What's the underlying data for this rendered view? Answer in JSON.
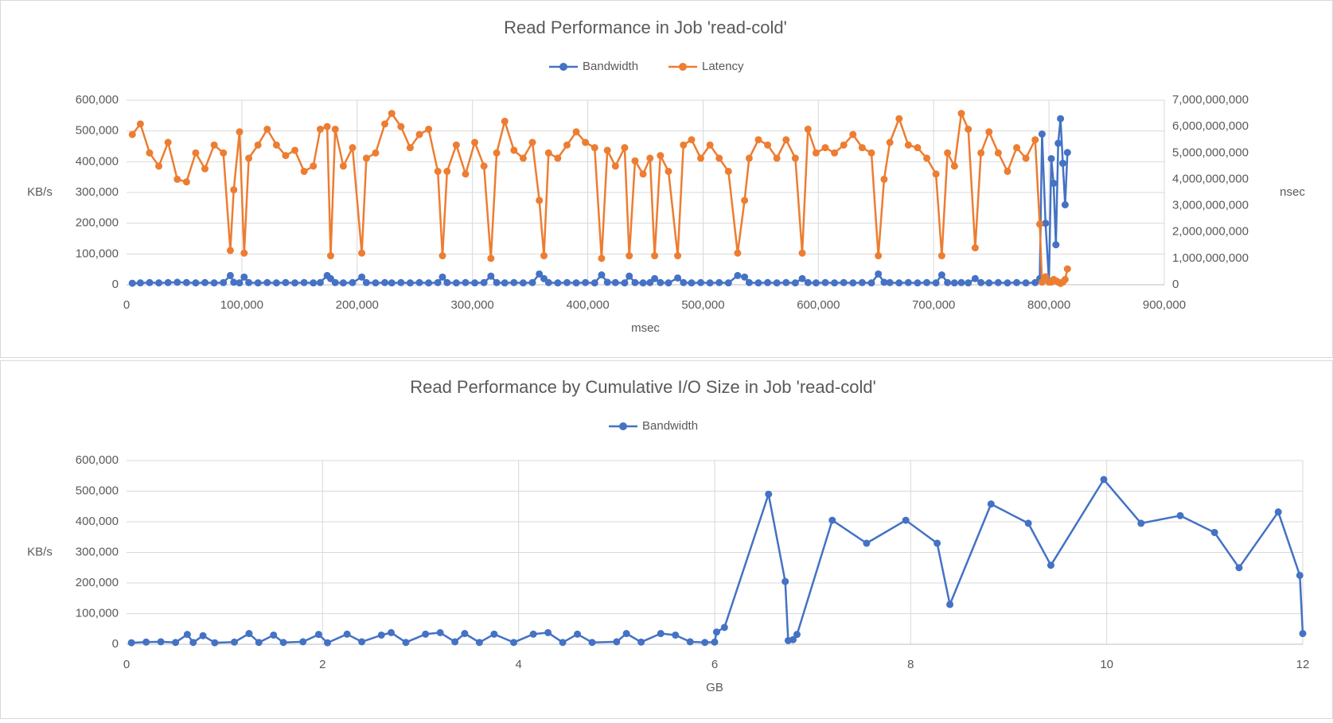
{
  "chart_data": [
    {
      "type": "line",
      "title": "Read Performance in Job 'read-cold'",
      "x_label": "msec",
      "y_label": "KB/s",
      "y2_label": "nsec",
      "grid": true,
      "legend": "top",
      "xlim": [
        0,
        900000
      ],
      "xticks": [
        0,
        {
          "value": 100000,
          "label": "100,000"
        },
        {
          "value": 200000,
          "label": "200,000"
        },
        {
          "value": 300000,
          "label": "300,000"
        },
        {
          "value": 400000,
          "label": "400,000"
        },
        {
          "value": 500000,
          "label": "500,000"
        },
        {
          "value": 600000,
          "label": "600,000"
        },
        {
          "value": 700000,
          "label": "700,000"
        },
        {
          "value": 800000,
          "label": "800,000"
        },
        {
          "value": 900000,
          "label": "900,000"
        }
      ],
      "ylim": [
        0,
        600000
      ],
      "yticks": [
        0,
        {
          "value": 100000,
          "label": "100,000"
        },
        {
          "value": 200000,
          "label": "200,000"
        },
        {
          "value": 300000,
          "label": "300,000"
        },
        {
          "value": 400000,
          "label": "400,000"
        },
        {
          "value": 500000,
          "label": "500,000"
        },
        {
          "value": 600000,
          "label": "600,000"
        }
      ],
      "y2lim": [
        0,
        7000000000
      ],
      "y2ticks": [
        0,
        {
          "value": 1000000000,
          "label": "1,000,000,000"
        },
        {
          "value": 2000000000,
          "label": "2,000,000,000"
        },
        {
          "value": 3000000000,
          "label": "3,000,000,000"
        },
        {
          "value": 4000000000,
          "label": "4,000,000,000"
        },
        {
          "value": 5000000000,
          "label": "5,000,000,000"
        },
        {
          "value": 6000000000,
          "label": "6,000,000,000"
        },
        {
          "value": 7000000000,
          "label": "7,000,000,000"
        }
      ],
      "x": [
        5000,
        12000,
        20000,
        28000,
        36000,
        44000,
        52000,
        60000,
        68000,
        76000,
        84000,
        90000,
        93000,
        98000,
        102000,
        106000,
        114000,
        122000,
        130000,
        138000,
        146000,
        154000,
        162000,
        168000,
        174000,
        177000,
        181000,
        188000,
        196000,
        204000,
        208000,
        216000,
        224000,
        230000,
        238000,
        246000,
        254000,
        262000,
        270000,
        274000,
        278000,
        286000,
        294000,
        302000,
        310000,
        316000,
        321000,
        328000,
        336000,
        344000,
        352000,
        358000,
        362000,
        366000,
        374000,
        382000,
        390000,
        398000,
        406000,
        412000,
        417000,
        424000,
        432000,
        436000,
        441000,
        448000,
        454000,
        458000,
        463000,
        470000,
        478000,
        483000,
        490000,
        498000,
        506000,
        514000,
        522000,
        530000,
        536000,
        540000,
        548000,
        556000,
        564000,
        572000,
        580000,
        586000,
        591000,
        598000,
        606000,
        614000,
        622000,
        630000,
        638000,
        646000,
        652000,
        657000,
        662000,
        670000,
        678000,
        686000,
        694000,
        702000,
        707000,
        712000,
        718000,
        724000,
        730000,
        736000,
        741000,
        748000,
        756000,
        764000,
        772000,
        780000,
        788000,
        792000,
        794000,
        797000,
        800000,
        802000,
        804000,
        806000,
        808000,
        810000,
        812000,
        814000,
        816000
      ],
      "series": [
        {
          "name": "Bandwidth",
          "color": "#4472c4",
          "values": [
            5000,
            6000,
            7000,
            6000,
            7000,
            8000,
            7000,
            6000,
            7000,
            6000,
            7000,
            30000,
            8000,
            6000,
            25000,
            7000,
            6000,
            7000,
            6000,
            7000,
            6000,
            7000,
            6000,
            7000,
            30000,
            20000,
            7000,
            6000,
            7000,
            25000,
            7000,
            6000,
            7000,
            6000,
            7000,
            6000,
            7000,
            6000,
            7000,
            25000,
            7000,
            6000,
            7000,
            6000,
            7000,
            28000,
            7000,
            6000,
            7000,
            6000,
            7000,
            35000,
            20000,
            7000,
            6000,
            7000,
            6000,
            7000,
            6000,
            32000,
            8000,
            7000,
            6000,
            28000,
            7000,
            6000,
            7000,
            20000,
            7000,
            6000,
            22000,
            7000,
            6000,
            7000,
            6000,
            7000,
            6000,
            30000,
            25000,
            7000,
            6000,
            7000,
            6000,
            7000,
            6000,
            20000,
            7000,
            6000,
            7000,
            6000,
            7000,
            6000,
            7000,
            6000,
            35000,
            8000,
            7000,
            6000,
            7000,
            6000,
            7000,
            6000,
            32000,
            7000,
            6000,
            7000,
            6000,
            20000,
            7000,
            6000,
            7000,
            6000,
            7000,
            6000,
            7000,
            20000,
            490000,
            200000,
            10000,
            410000,
            330000,
            130000,
            460000,
            540000,
            395000,
            260000,
            430000
          ]
        },
        {
          "name": "Latency",
          "color": "#ed7d31",
          "axis": "y2",
          "values": [
            5700000000,
            6100000000,
            5000000000,
            4500000000,
            5400000000,
            4000000000,
            3900000000,
            5000000000,
            4400000000,
            5300000000,
            5000000000,
            1300000000,
            3600000000,
            5800000000,
            1200000000,
            4800000000,
            5300000000,
            5900000000,
            5300000000,
            4900000000,
            5100000000,
            4300000000,
            4500000000,
            5900000000,
            6000000000,
            1100000000,
            5900000000,
            4500000000,
            5200000000,
            1200000000,
            4800000000,
            5000000000,
            6100000000,
            6500000000,
            6000000000,
            5200000000,
            5700000000,
            5900000000,
            4300000000,
            1100000000,
            4300000000,
            5300000000,
            4200000000,
            5400000000,
            4500000000,
            1000000000,
            5000000000,
            6200000000,
            5100000000,
            4800000000,
            5400000000,
            3200000000,
            1100000000,
            5000000000,
            4800000000,
            5300000000,
            5800000000,
            5400000000,
            5200000000,
            1000000000,
            5100000000,
            4500000000,
            5200000000,
            1100000000,
            4700000000,
            4200000000,
            4800000000,
            1100000000,
            4900000000,
            4300000000,
            1100000000,
            5300000000,
            5500000000,
            4800000000,
            5300000000,
            4800000000,
            4300000000,
            1200000000,
            3200000000,
            4800000000,
            5500000000,
            5300000000,
            4800000000,
            5500000000,
            4800000000,
            1200000000,
            5900000000,
            5000000000,
            5200000000,
            5000000000,
            5300000000,
            5700000000,
            5200000000,
            5000000000,
            1100000000,
            4000000000,
            5400000000,
            6300000000,
            5300000000,
            5200000000,
            4800000000,
            4200000000,
            1100000000,
            5000000000,
            4500000000,
            6500000000,
            5900000000,
            1400000000,
            5000000000,
            5800000000,
            5000000000,
            4300000000,
            5200000000,
            4800000000,
            5500000000,
            2300000000,
            100000000,
            300000000,
            100000000,
            100000000,
            200000000,
            150000000,
            100000000,
            50000000,
            100000000,
            200000000,
            600000000
          ]
        }
      ]
    },
    {
      "type": "line",
      "title": "Read Performance by Cumulative I/O Size in Job 'read-cold'",
      "x_label": "GB",
      "y_label": "KB/s",
      "grid": true,
      "legend": "top",
      "xlim": [
        0,
        12
      ],
      "xticks": [
        0,
        2,
        4,
        6,
        8,
        10,
        12
      ],
      "ylim": [
        0,
        600000
      ],
      "yticks": [
        0,
        {
          "value": 100000,
          "label": "100,000"
        },
        {
          "value": 200000,
          "label": "200,000"
        },
        {
          "value": 300000,
          "label": "300,000"
        },
        {
          "value": 400000,
          "label": "400,000"
        },
        {
          "value": 500000,
          "label": "500,000"
        },
        {
          "value": 600000,
          "label": "600,000"
        }
      ],
      "x": [
        0.05,
        0.2,
        0.35,
        0.5,
        0.62,
        0.68,
        0.78,
        0.9,
        1.1,
        1.25,
        1.35,
        1.5,
        1.6,
        1.8,
        1.96,
        2.05,
        2.25,
        2.4,
        2.6,
        2.7,
        2.85,
        3.05,
        3.2,
        3.35,
        3.45,
        3.6,
        3.75,
        3.95,
        4.15,
        4.3,
        4.45,
        4.6,
        4.75,
        5.0,
        5.1,
        5.25,
        5.45,
        5.6,
        5.75,
        5.9,
        6.0,
        6.02,
        6.1,
        6.55,
        6.72,
        6.75,
        6.8,
        6.84,
        7.2,
        7.55,
        7.95,
        8.27,
        8.4,
        8.82,
        9.2,
        9.43,
        9.97,
        10.35,
        10.75,
        11.1,
        11.35,
        11.75,
        11.97,
        12.0
      ],
      "series": [
        {
          "name": "Bandwidth",
          "color": "#4472c4",
          "values": [
            5000,
            7000,
            8000,
            6000,
            32000,
            6000,
            28000,
            5000,
            7000,
            35000,
            6000,
            30000,
            6000,
            8000,
            32000,
            5000,
            33000,
            8000,
            30000,
            38000,
            6000,
            33000,
            38000,
            8000,
            35000,
            6000,
            33000,
            6000,
            33000,
            38000,
            6000,
            33000,
            6000,
            8000,
            35000,
            7000,
            35000,
            30000,
            8000,
            6000,
            7000,
            40000,
            55000,
            490000,
            205000,
            12000,
            15000,
            32000,
            405000,
            330000,
            405000,
            330000,
            130000,
            458000,
            395000,
            258000,
            538000,
            395000,
            420000,
            365000,
            250000,
            432000,
            225000,
            35000
          ]
        }
      ]
    }
  ]
}
